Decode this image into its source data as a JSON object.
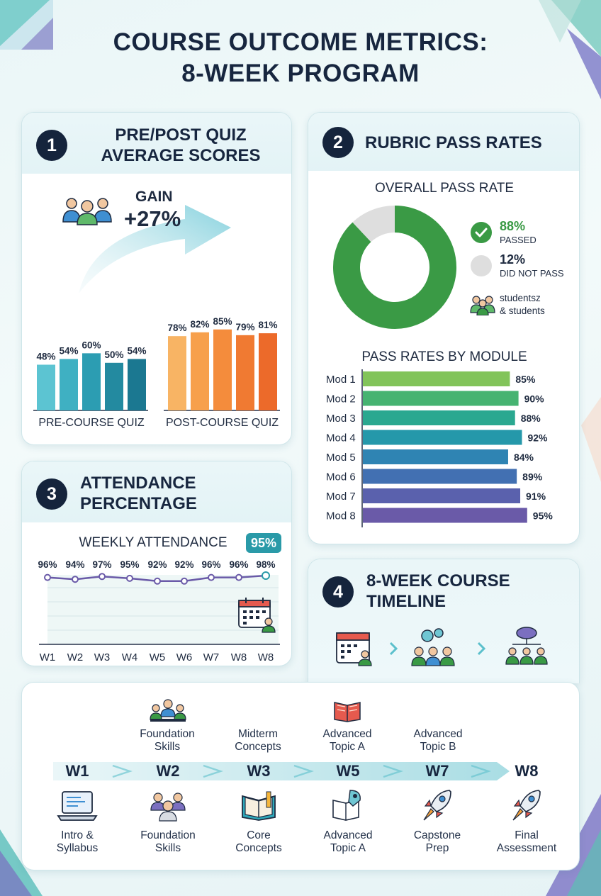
{
  "title": {
    "line1": "COURSE OUTCOME METRICS:",
    "line2": "8-WEEK PROGRAM"
  },
  "colors": {
    "navy": "#15243c",
    "teal": "#2fa9bb",
    "orange": "#f2853a",
    "green": "#3a9a45",
    "grey": "#dedede",
    "purple": "#6a5aa8"
  },
  "quiz": {
    "number": "1",
    "title_line1": "PRE/POST QUIZ",
    "title_line2": "AVERAGE SCORES",
    "gain_label": "GAIN",
    "gain_value": "+27%",
    "people_icon": "students-group-icon",
    "pre_label": "PRE-COURSE QUIZ",
    "post_label": "POST-COURSE QUIZ"
  },
  "rubric": {
    "number": "2",
    "title": "RUBRIC PASS RATES",
    "overall_title": "OVERALL PASS RATE",
    "passed_value": "88%",
    "passed_label": "PASSED",
    "failed_value": "12%",
    "failed_label": "DID NOT PASS",
    "students_line1": "studentsz",
    "students_line2": "& students",
    "module_title": "PASS RATES BY MODULE"
  },
  "attendance": {
    "number": "3",
    "title_line1": "ATTENDANCE",
    "title_line2": "PERCENTAGE",
    "chart_title": "WEEKLY ATTENDANCE",
    "badge": "95%"
  },
  "timeline": {
    "number": "4",
    "title_line1": "8-WEEK COURSE",
    "title_line2": "TIMELINE",
    "weeks": [
      "W1",
      "W2",
      "W3",
      "W5",
      "W7",
      "W8"
    ],
    "top_labels": [
      {
        "line1": "Foundation",
        "line2": "Skills"
      },
      {
        "line1": "Midterm",
        "line2": "Concepts"
      },
      {
        "line1": "Advanced",
        "line2": "Topic A"
      },
      {
        "line1": "Advanced",
        "line2": "Topic B"
      }
    ],
    "bottom_labels": [
      {
        "line1": "Intro &",
        "line2": "Syllabus"
      },
      {
        "line1": "Foundation",
        "line2": "Skills"
      },
      {
        "line1": "Core",
        "line2": "Concepts"
      },
      {
        "line1": "Advanced",
        "line2": "Topic A"
      },
      {
        "line1": "Capstone",
        "line2": "Prep"
      },
      {
        "line1": "Final",
        "line2": "Assessment"
      }
    ]
  },
  "chart_data": [
    {
      "type": "bar",
      "title": "PRE/POST QUIZ AVERAGE SCORES",
      "series": [
        {
          "name": "PRE-COURSE QUIZ",
          "values": [
            48,
            54,
            60,
            50,
            54
          ],
          "labels": [
            "48%",
            "54%",
            "60%",
            "50%",
            "54%"
          ]
        },
        {
          "name": "POST-COURSE QUIZ",
          "values": [
            78,
            82,
            85,
            79,
            81
          ],
          "labels": [
            "78%",
            "82%",
            "85%",
            "79%",
            "81%"
          ]
        }
      ],
      "ylim": [
        0,
        100
      ],
      "grid": false
    },
    {
      "type": "pie",
      "title": "OVERALL PASS RATE",
      "slices": [
        {
          "name": "PASSED",
          "value": 88
        },
        {
          "name": "DID NOT PASS",
          "value": 12
        }
      ]
    },
    {
      "type": "bar",
      "orientation": "horizontal",
      "title": "PASS RATES BY MODULE",
      "categories": [
        "Mod 1",
        "Mod 2",
        "Mod 3",
        "Mod 4",
        "Mod 5",
        "Mod 6",
        "Mod 7",
        "Mod 8"
      ],
      "values": [
        85,
        90,
        88,
        92,
        84,
        89,
        91,
        95
      ],
      "labels": [
        "85%",
        "90%",
        "88%",
        "92%",
        "84%",
        "89%",
        "91%",
        "95%"
      ],
      "xlim": [
        0,
        100
      ]
    },
    {
      "type": "line",
      "title": "WEEKLY ATTENDANCE",
      "categories": [
        "W1",
        "W2",
        "W3",
        "W4",
        "W5",
        "W6",
        "W7",
        "W8",
        "W8"
      ],
      "values": [
        96,
        94,
        97,
        95,
        92,
        92,
        96,
        96,
        98
      ],
      "labels": [
        "96%",
        "94%",
        "97%",
        "95%",
        "92%",
        "92%",
        "96%",
        "96%",
        "98%"
      ],
      "ylim": [
        0,
        100
      ],
      "grid": true
    }
  ]
}
